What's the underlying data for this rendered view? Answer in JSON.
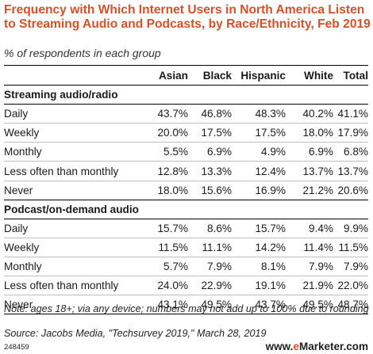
{
  "title": "Frequency with Which Internet Users in North America Listen to Streaming Audio and Podcasts, by Race/Ethnicity, Feb 2019",
  "subtitle": "% of respondents in each group",
  "columns": [
    "",
    "Asian",
    "Black",
    "Hispanic",
    "White",
    "Total"
  ],
  "sections": [
    {
      "name": "Streaming audio/radio",
      "rows": [
        {
          "label": "Daily",
          "values": [
            "43.7%",
            "46.8%",
            "48.3%",
            "40.2%",
            "41.1%"
          ]
        },
        {
          "label": "Weekly",
          "values": [
            "20.0%",
            "17.5%",
            "17.5%",
            "18.0%",
            "17.9%"
          ]
        },
        {
          "label": "Monthly",
          "values": [
            "5.5%",
            "6.9%",
            "4.9%",
            "6.9%",
            "6.8%"
          ]
        },
        {
          "label": "Less often than monthly",
          "values": [
            "12.8%",
            "13.3%",
            "12.4%",
            "13.7%",
            "13.7%"
          ]
        },
        {
          "label": "Never",
          "values": [
            "18.0%",
            "15.6%",
            "16.9%",
            "21.2%",
            "20.6%"
          ]
        }
      ]
    },
    {
      "name": "Podcast/on-demand audio",
      "rows": [
        {
          "label": "Daily",
          "values": [
            "15.7%",
            "8.6%",
            "15.7%",
            "9.4%",
            "9.9%"
          ]
        },
        {
          "label": "Weekly",
          "values": [
            "11.5%",
            "11.1%",
            "14.2%",
            "11.4%",
            "11.5%"
          ]
        },
        {
          "label": "Monthly",
          "values": [
            "5.7%",
            "7.9%",
            "8.1%",
            "7.9%",
            "7.9%"
          ]
        },
        {
          "label": "Less often than monthly",
          "values": [
            "24.0%",
            "22.9%",
            "19.1%",
            "21.9%",
            "22.0%"
          ]
        },
        {
          "label": "Never",
          "values": [
            "43.1%",
            "49.5%",
            "43.7%",
            "49.5%",
            "48.7%"
          ]
        }
      ]
    }
  ],
  "note": "Note: ages 18+; via any device; numbers may not add up to 100% due to rounding",
  "source": "Source: Jacobs Media, \"Techsurvey 2019,\" March 28, 2019",
  "chart_id": "248459",
  "brand_prefix": "www.",
  "brand_e": "e",
  "brand_rest": "Marketer.com",
  "colors": {
    "title": "#d4512a",
    "brand_accent": "#d4512a"
  },
  "chart_data": {
    "type": "table",
    "title": "Frequency with Which Internet Users in North America Listen to Streaming Audio and Podcasts, by Race/Ethnicity, Feb 2019",
    "subtitle": "% of respondents in each group",
    "columns": [
      "Asian",
      "Black",
      "Hispanic",
      "White",
      "Total"
    ],
    "groups": [
      {
        "name": "Streaming audio/radio",
        "rows": [
          {
            "label": "Daily",
            "values": [
              43.7,
              46.8,
              48.3,
              40.2,
              41.1
            ]
          },
          {
            "label": "Weekly",
            "values": [
              20.0,
              17.5,
              17.5,
              18.0,
              17.9
            ]
          },
          {
            "label": "Monthly",
            "values": [
              5.5,
              6.9,
              4.9,
              6.9,
              6.8
            ]
          },
          {
            "label": "Less often than monthly",
            "values": [
              12.8,
              13.3,
              12.4,
              13.7,
              13.7
            ]
          },
          {
            "label": "Never",
            "values": [
              18.0,
              15.6,
              16.9,
              21.2,
              20.6
            ]
          }
        ]
      },
      {
        "name": "Podcast/on-demand audio",
        "rows": [
          {
            "label": "Daily",
            "values": [
              15.7,
              8.6,
              15.7,
              9.4,
              9.9
            ]
          },
          {
            "label": "Weekly",
            "values": [
              11.5,
              11.1,
              14.2,
              11.4,
              11.5
            ]
          },
          {
            "label": "Monthly",
            "values": [
              5.7,
              7.9,
              8.1,
              7.9,
              7.9
            ]
          },
          {
            "label": "Less often than monthly",
            "values": [
              24.0,
              22.9,
              19.1,
              21.9,
              22.0
            ]
          },
          {
            "label": "Never",
            "values": [
              43.1,
              49.5,
              43.7,
              49.5,
              48.7
            ]
          }
        ]
      }
    ]
  }
}
